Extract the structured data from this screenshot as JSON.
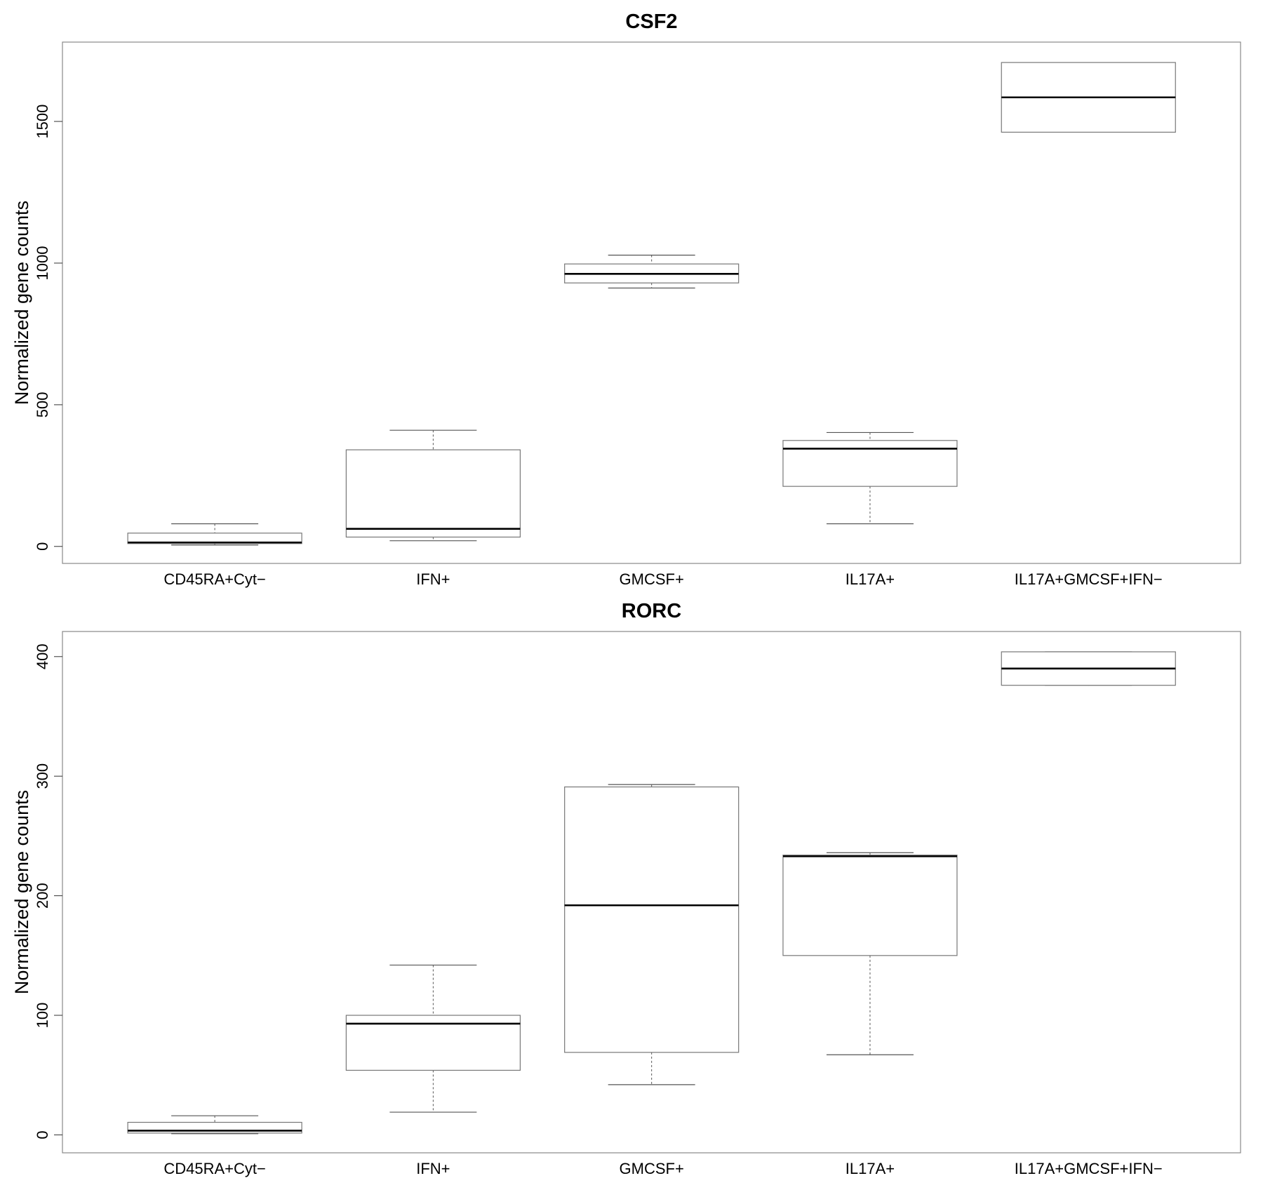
{
  "chart_data": [
    {
      "type": "boxplot",
      "title": "CSF2",
      "ylabel": "Normalized gene counts",
      "xlabel": "",
      "categories": [
        "CD45RA+Cyt−",
        "IFN+",
        "GMCSF+",
        "IL17A+",
        "IL17A+GMCSF+IFN−"
      ],
      "yticks": [
        0,
        500,
        1000,
        1500
      ],
      "ylim": [
        -60,
        1780
      ],
      "grid": false,
      "boxes": [
        {
          "min": 5,
          "q1": 10,
          "median": 14,
          "q3": 47,
          "max": 80
        },
        {
          "min": 20,
          "q1": 33,
          "median": 62,
          "q3": 341,
          "max": 410
        },
        {
          "min": 912,
          "q1": 930,
          "median": 962,
          "q3": 997,
          "max": 1028
        },
        {
          "min": 80,
          "q1": 212,
          "median": 345,
          "q3": 374,
          "max": 402
        },
        {
          "min": 1462,
          "q1": 1462,
          "median": 1585,
          "q3": 1708,
          "max": 1708
        }
      ]
    },
    {
      "type": "boxplot",
      "title": "RORC",
      "ylabel": "Normalized gene counts",
      "xlabel": "",
      "categories": [
        "CD45RA+Cyt−",
        "IFN+",
        "GMCSF+",
        "IL17A+",
        "IL17A+GMCSF+IFN−"
      ],
      "yticks": [
        0,
        100,
        200,
        300,
        400
      ],
      "ylim": [
        -15,
        421
      ],
      "grid": false,
      "boxes": [
        {
          "min": 1,
          "q1": 1.5,
          "median": 3.5,
          "q3": 10.5,
          "max": 16
        },
        {
          "min": 19,
          "q1": 54,
          "median": 93,
          "q3": 100,
          "max": 142
        },
        {
          "min": 42,
          "q1": 69,
          "median": 192,
          "q3": 291,
          "max": 293
        },
        {
          "min": 67,
          "q1": 150,
          "median": 233,
          "q3": 234,
          "max": 236
        },
        {
          "min": 376,
          "q1": 376,
          "median": 390,
          "q3": 404,
          "max": 404
        }
      ]
    }
  ]
}
